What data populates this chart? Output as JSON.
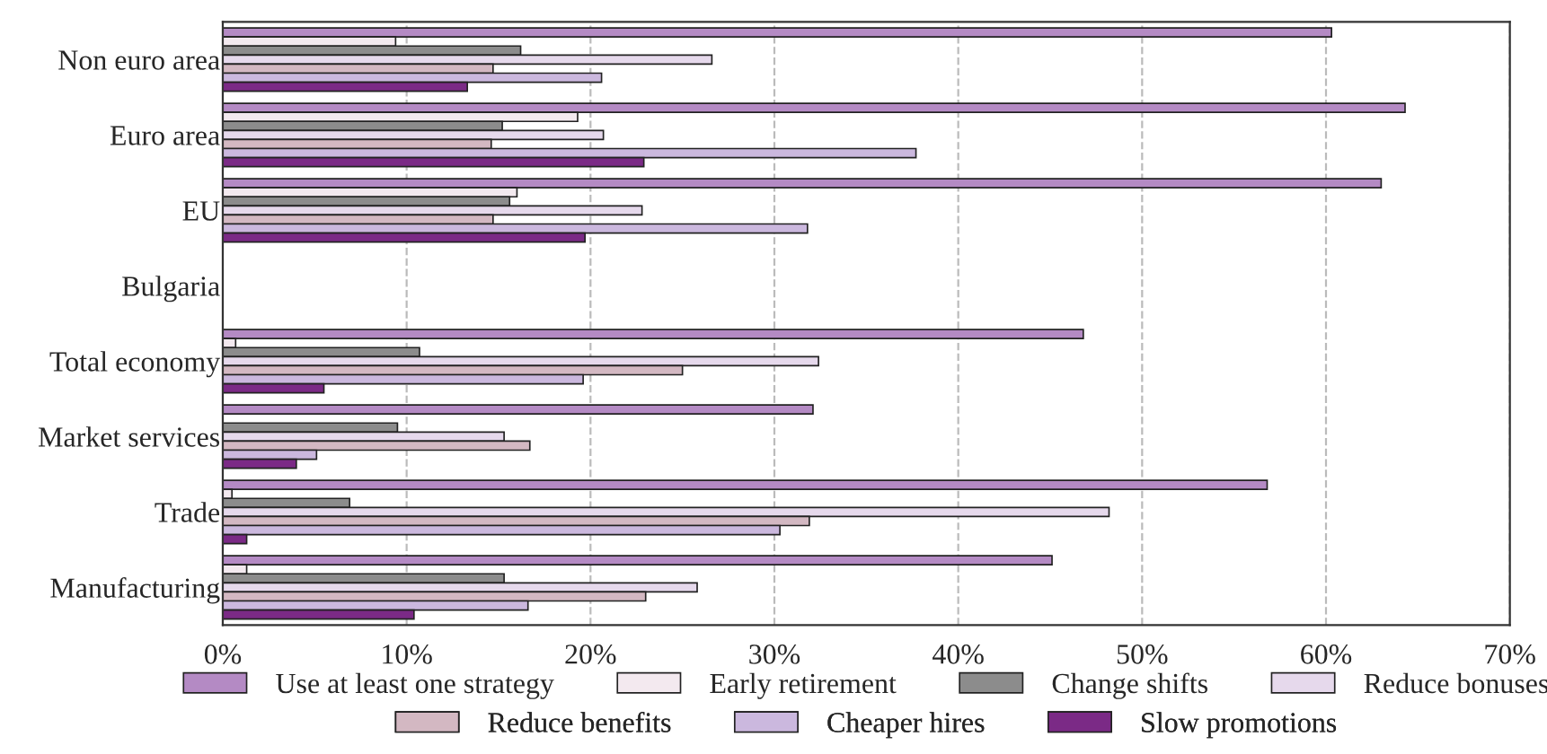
{
  "chart_data": {
    "type": "bar",
    "orientation": "horizontal",
    "categories": [
      "Non euro area",
      "Euro area",
      "EU",
      "Bulgaria",
      "Total economy",
      "Market services",
      "Trade",
      "Manufacturing"
    ],
    "series": [
      {
        "name": "Use at least one strategy",
        "color": "#b48ac4",
        "values": [
          60.3,
          64.3,
          63.0,
          null,
          46.8,
          32.1,
          56.8,
          45.1
        ]
      },
      {
        "name": "Early retirement",
        "color": "#f3e9ef",
        "values": [
          9.4,
          19.3,
          16.0,
          null,
          0.7,
          null,
          0.5,
          1.3
        ]
      },
      {
        "name": "Change shifts",
        "color": "#8c8c8c",
        "values": [
          16.2,
          15.2,
          15.6,
          null,
          10.7,
          9.5,
          6.9,
          15.3
        ]
      },
      {
        "name": "Reduce bonuses",
        "color": "#e6d9ec",
        "values": [
          26.6,
          20.7,
          22.8,
          null,
          32.4,
          15.3,
          48.2,
          25.8
        ]
      },
      {
        "name": "Reduce benefits",
        "color": "#d3b8c2",
        "values": [
          14.7,
          14.6,
          14.7,
          null,
          25.0,
          16.7,
          31.9,
          23.0
        ]
      },
      {
        "name": "Cheaper hires",
        "color": "#cbb8de",
        "values": [
          20.6,
          37.7,
          31.8,
          null,
          19.6,
          5.1,
          30.3,
          16.6
        ]
      },
      {
        "name": "Slow promotions",
        "color": "#7b2a86",
        "values": [
          13.3,
          22.9,
          19.7,
          null,
          5.5,
          4.0,
          1.3,
          10.4
        ]
      }
    ],
    "xlim": [
      0,
      70
    ],
    "xticks": [
      {
        "value": 0,
        "label": "0%"
      },
      {
        "value": 10,
        "label": "10%"
      },
      {
        "value": 20,
        "label": "20%"
      },
      {
        "value": 30,
        "label": "30%"
      },
      {
        "value": 40,
        "label": "40%"
      },
      {
        "value": 50,
        "label": "50%"
      },
      {
        "value": 60,
        "label": "60%"
      },
      {
        "value": 70,
        "label": "70%"
      }
    ],
    "grid": "x",
    "legend": "bottom"
  }
}
